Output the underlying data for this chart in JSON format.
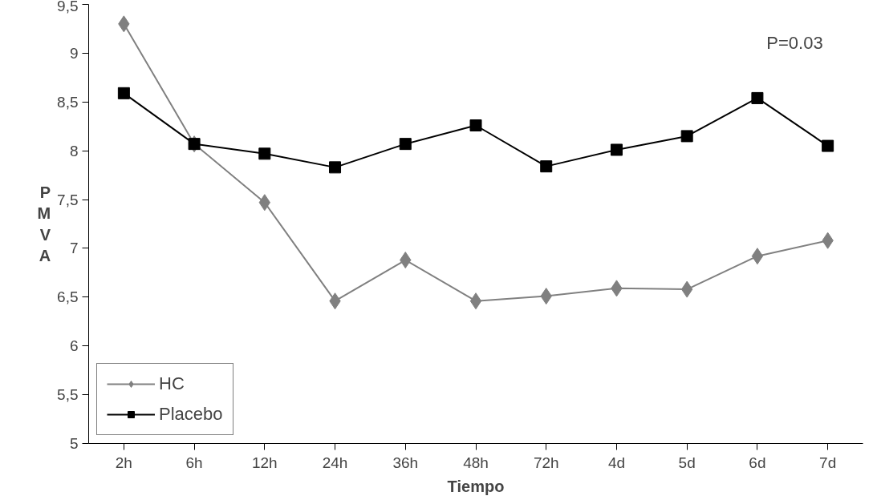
{
  "chart_data": {
    "type": "line",
    "categories": [
      "2h",
      "6h",
      "12h",
      "24h",
      "36h",
      "48h",
      "72h",
      "4d",
      "5d",
      "6d",
      "7d"
    ],
    "series": [
      {
        "name": "HC",
        "color": "#808080",
        "marker": "diamond",
        "values": [
          9.3,
          8.07,
          7.47,
          6.46,
          6.88,
          6.46,
          6.51,
          6.59,
          6.58,
          6.92,
          7.08
        ]
      },
      {
        "name": "Placebo",
        "color": "#000000",
        "marker": "square",
        "values": [
          8.59,
          8.07,
          7.97,
          7.83,
          8.07,
          8.26,
          7.84,
          8.01,
          8.15,
          8.54,
          8.05
        ]
      }
    ],
    "xlabel": "Tiempo",
    "ylabel": "PMVA",
    "ylim": [
      5,
      9.5
    ],
    "yticks": [
      {
        "value": 5,
        "label": "5"
      },
      {
        "value": 5.5,
        "label": "5,5"
      },
      {
        "value": 6,
        "label": "6"
      },
      {
        "value": 6.5,
        "label": "6,5"
      },
      {
        "value": 7,
        "label": "7"
      },
      {
        "value": 7.5,
        "label": "7,5"
      },
      {
        "value": 8,
        "label": "8"
      },
      {
        "value": 8.5,
        "label": "8,5"
      },
      {
        "value": 9,
        "label": "9"
      },
      {
        "value": 9.5,
        "label": "9,5"
      }
    ],
    "annotations": [
      "P=0.03"
    ],
    "legend": "bottom left",
    "grid": false,
    "line_style": "solid"
  }
}
